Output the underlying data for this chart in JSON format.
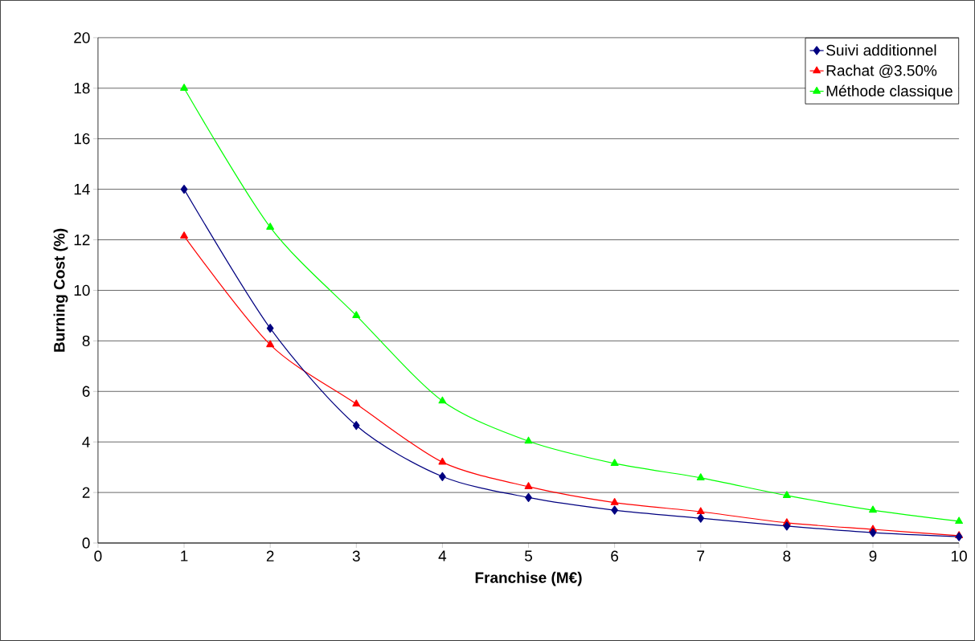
{
  "chart_data": {
    "type": "line",
    "xlabel": "Franchise (M€)",
    "ylabel": "Burning Cost (%)",
    "x": [
      1,
      2,
      3,
      4,
      5,
      6,
      7,
      8,
      9,
      10
    ],
    "series": [
      {
        "name": "Suivi additionnel",
        "color": "#000080",
        "marker": "diamond",
        "values": [
          14,
          8.5,
          4.65,
          2.63,
          1.8,
          1.3,
          0.98,
          0.67,
          0.41,
          0.25
        ]
      },
      {
        "name": "Rachat @3.50%",
        "color": "#ff0000",
        "marker": "triangle",
        "values": [
          12.15,
          7.85,
          5.5,
          3.2,
          2.23,
          1.6,
          1.24,
          0.8,
          0.54,
          0.29
        ]
      },
      {
        "name": "Méthode classique",
        "color": "#00ff00",
        "marker": "triangle",
        "values": [
          18,
          12.5,
          9.0,
          5.62,
          4.03,
          3.15,
          2.58,
          1.88,
          1.3,
          0.86
        ]
      }
    ],
    "xlim": [
      0,
      10
    ],
    "ylim": [
      0,
      20
    ],
    "xticks": [
      0,
      1,
      2,
      3,
      4,
      5,
      6,
      7,
      8,
      9,
      10
    ],
    "yticks": [
      0,
      2,
      4,
      6,
      8,
      10,
      12,
      14,
      16,
      18,
      20
    ],
    "grid": "y",
    "legend": "top right",
    "line_style": "solid"
  }
}
